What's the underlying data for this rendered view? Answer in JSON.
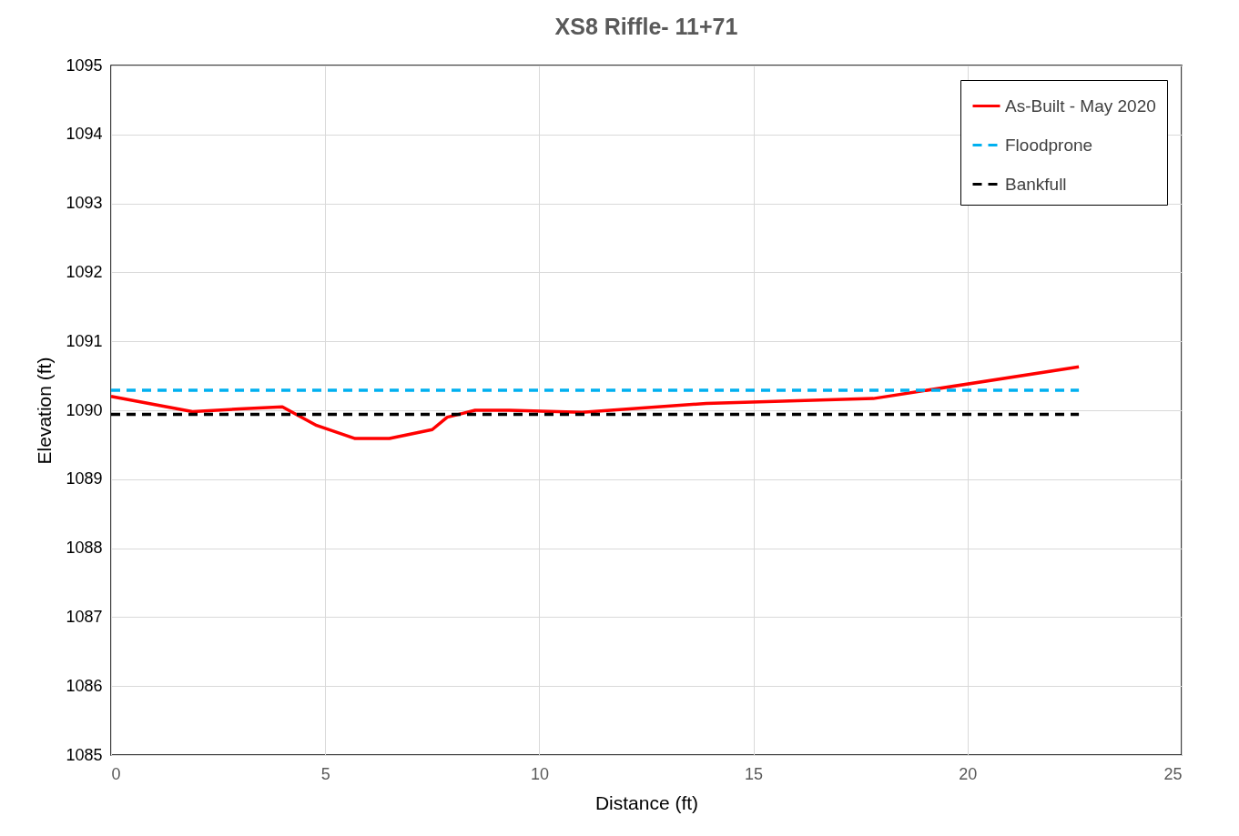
{
  "chart_data": {
    "type": "line",
    "title": "XS8 Riffle- 11+71",
    "xlabel": "Distance (ft)",
    "ylabel": "Elevation (ft)",
    "xlim": [
      0,
      25
    ],
    "xticks": [
      0,
      5,
      10,
      15,
      20,
      25
    ],
    "ylim": [
      1085,
      1095
    ],
    "yticks": [
      {
        "value": 1085,
        "label": "1085"
      },
      {
        "value": 1086,
        "label": "1086"
      },
      {
        "value": 1087,
        "label": "1087"
      },
      {
        "value": 1088,
        "label": "1088"
      },
      {
        "value": 1089,
        "label": "1089"
      },
      {
        "value": 1090,
        "label": "1090"
      },
      {
        "value": 1091,
        "label": "1091"
      },
      {
        "value": 1092,
        "label": "1092"
      },
      {
        "value": 1093,
        "label": "1093"
      },
      {
        "value": 1094,
        "label": "1094"
      },
      {
        "value": 1095,
        "label": "1095"
      }
    ],
    "grid": true,
    "legend": "top right",
    "marker": "none",
    "series": [
      {
        "name": "As-Built - May 2020",
        "color": "#ff0000",
        "line_style": "solid",
        "x": [
          0,
          1.9,
          3,
          4,
          4.8,
          5.7,
          6.5,
          7.5,
          7.85,
          8.5,
          9.3,
          11,
          13.9,
          17.8,
          22.6
        ],
        "values": [
          1090.2,
          1089.98,
          1090.02,
          1090.05,
          1089.78,
          1089.59,
          1089.59,
          1089.72,
          1089.9,
          1090,
          1090,
          1089.97,
          1090.1,
          1090.17,
          1090.63
        ]
      },
      {
        "name": "Floodprone",
        "color": "#00b0f0",
        "line_style": "dashed",
        "x": [
          0,
          22.6
        ],
        "values": [
          1090.29,
          1090.29
        ]
      },
      {
        "name": "Bankfull",
        "color": "#000000",
        "line_style": "dashed",
        "x": [
          0,
          22.6
        ],
        "values": [
          1089.94,
          1089.94
        ]
      }
    ]
  }
}
